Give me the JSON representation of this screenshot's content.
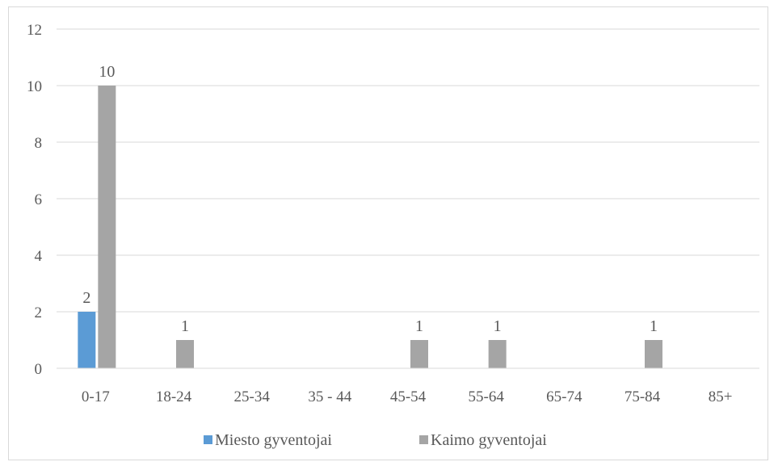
{
  "chart_data": {
    "type": "bar",
    "title": "",
    "xlabel": "",
    "ylabel": "",
    "categories": [
      "0-17",
      "18-24",
      "25-34",
      "35 - 44",
      "45-54",
      "55-64",
      "65-74",
      "75-84",
      "85+"
    ],
    "series": [
      {
        "name": "Miesto gyventojai",
        "color": "#5b9bd5",
        "values": [
          2,
          0,
          0,
          0,
          0,
          0,
          0,
          0,
          0
        ],
        "labels": [
          "2",
          null,
          null,
          null,
          null,
          null,
          null,
          null,
          null
        ]
      },
      {
        "name": "Kaimo gyventojai",
        "color": "#a5a5a5",
        "values": [
          10,
          1,
          0,
          0,
          1,
          1,
          0,
          1,
          0
        ],
        "labels": [
          "10",
          "1",
          null,
          null,
          "1",
          "1",
          null,
          "1",
          null
        ]
      }
    ],
    "ylim": [
      0,
      12
    ],
    "yticks": [
      0,
      2,
      4,
      6,
      8,
      10,
      12
    ],
    "grid": true,
    "legend": "bottom"
  }
}
